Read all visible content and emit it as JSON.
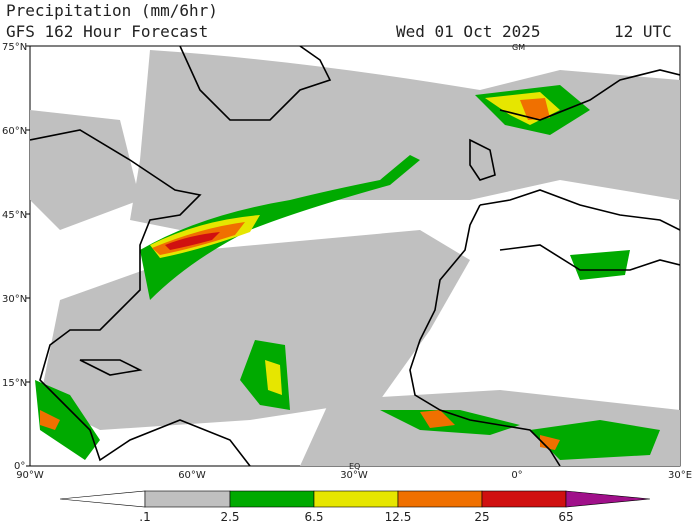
{
  "header": {
    "title": "Precipitation (mm/6hr)",
    "subtitle": "GFS 162 Hour Forecast",
    "date": "Wed 01 Oct 2025",
    "time": "12 UTC"
  },
  "map": {
    "lat_labels": [
      "75°N",
      "60°N",
      "45°N",
      "30°N",
      "15°N",
      "0°"
    ],
    "lon_labels": [
      "90°W",
      "60°W",
      "30°W",
      "0°",
      "30°E"
    ],
    "markers": [
      "GM",
      "EQ"
    ]
  },
  "colorbar": {
    "labels": [
      ".1",
      "2.5",
      "6.5",
      "12.5",
      "25",
      "65"
    ]
  }
}
